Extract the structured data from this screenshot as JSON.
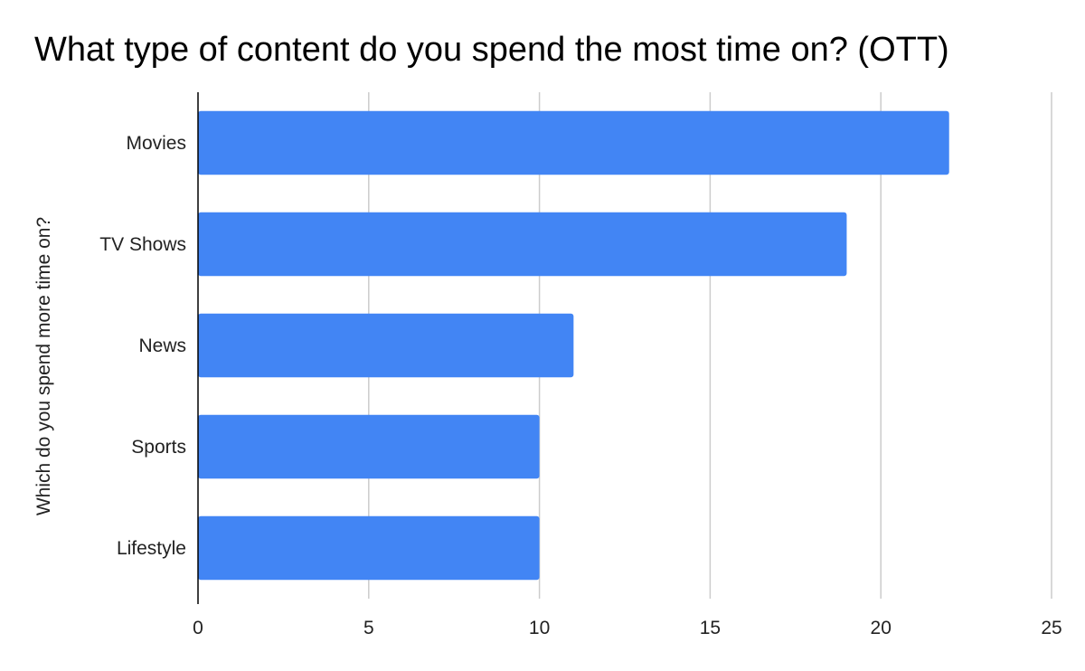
{
  "chart_data": {
    "type": "bar",
    "orientation": "horizontal",
    "title": "What type of content do you spend the most time on? (OTT)",
    "ylabel": "Which do you spend more time on?",
    "xlabel": "",
    "categories": [
      "Movies",
      "TV Shows",
      "News",
      "Sports",
      "Lifestyle"
    ],
    "values": [
      22,
      19,
      11,
      10,
      10
    ],
    "xlim": [
      0,
      25
    ],
    "xticks": [
      0,
      5,
      10,
      15,
      20,
      25
    ],
    "grid": true,
    "legend": "none",
    "colors": {
      "bar": "#4285f4",
      "grid": "#cccccc",
      "axis": "#000000"
    }
  }
}
